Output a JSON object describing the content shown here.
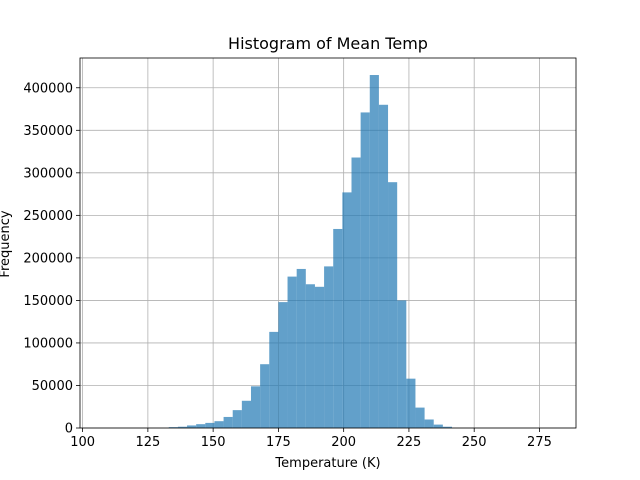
{
  "chart_data": {
    "type": "bar",
    "title": "Histogram of Mean Temp",
    "xlabel": "Temperature (K)",
    "ylabel": "Frequency",
    "xlim": [
      99,
      289
    ],
    "ylim": [
      0,
      435000
    ],
    "xticks": [
      100,
      125,
      150,
      175,
      200,
      225,
      250,
      275
    ],
    "yticks": [
      0,
      50000,
      100000,
      150000,
      200000,
      250000,
      300000,
      350000,
      400000
    ],
    "grid": true,
    "bar_color": "#1f77b4",
    "bar_opacity": 0.7,
    "bin_width": 3.5,
    "bins": [
      {
        "x0": 133.0,
        "value": 1000
      },
      {
        "x0": 136.5,
        "value": 1500
      },
      {
        "x0": 140.0,
        "value": 3000
      },
      {
        "x0": 143.5,
        "value": 4500
      },
      {
        "x0": 147.0,
        "value": 6000
      },
      {
        "x0": 150.5,
        "value": 8000
      },
      {
        "x0": 154.0,
        "value": 13000
      },
      {
        "x0": 157.5,
        "value": 21000
      },
      {
        "x0": 161.0,
        "value": 32000
      },
      {
        "x0": 164.5,
        "value": 49000
      },
      {
        "x0": 168.0,
        "value": 75000
      },
      {
        "x0": 171.5,
        "value": 113000
      },
      {
        "x0": 175.0,
        "value": 148000
      },
      {
        "x0": 178.5,
        "value": 178000
      },
      {
        "x0": 182.0,
        "value": 187000
      },
      {
        "x0": 185.5,
        "value": 169000
      },
      {
        "x0": 189.0,
        "value": 166000
      },
      {
        "x0": 192.5,
        "value": 190000
      },
      {
        "x0": 196.0,
        "value": 234000
      },
      {
        "x0": 199.5,
        "value": 277000
      },
      {
        "x0": 203.0,
        "value": 318000
      },
      {
        "x0": 206.5,
        "value": 371000
      },
      {
        "x0": 210.0,
        "value": 415000
      },
      {
        "x0": 213.5,
        "value": 380000
      },
      {
        "x0": 217.0,
        "value": 289000
      },
      {
        "x0": 220.5,
        "value": 150000
      },
      {
        "x0": 224.0,
        "value": 58000
      },
      {
        "x0": 227.5,
        "value": 24000
      },
      {
        "x0": 231.0,
        "value": 10000
      },
      {
        "x0": 234.5,
        "value": 4000
      },
      {
        "x0": 238.0,
        "value": 1500
      }
    ]
  }
}
